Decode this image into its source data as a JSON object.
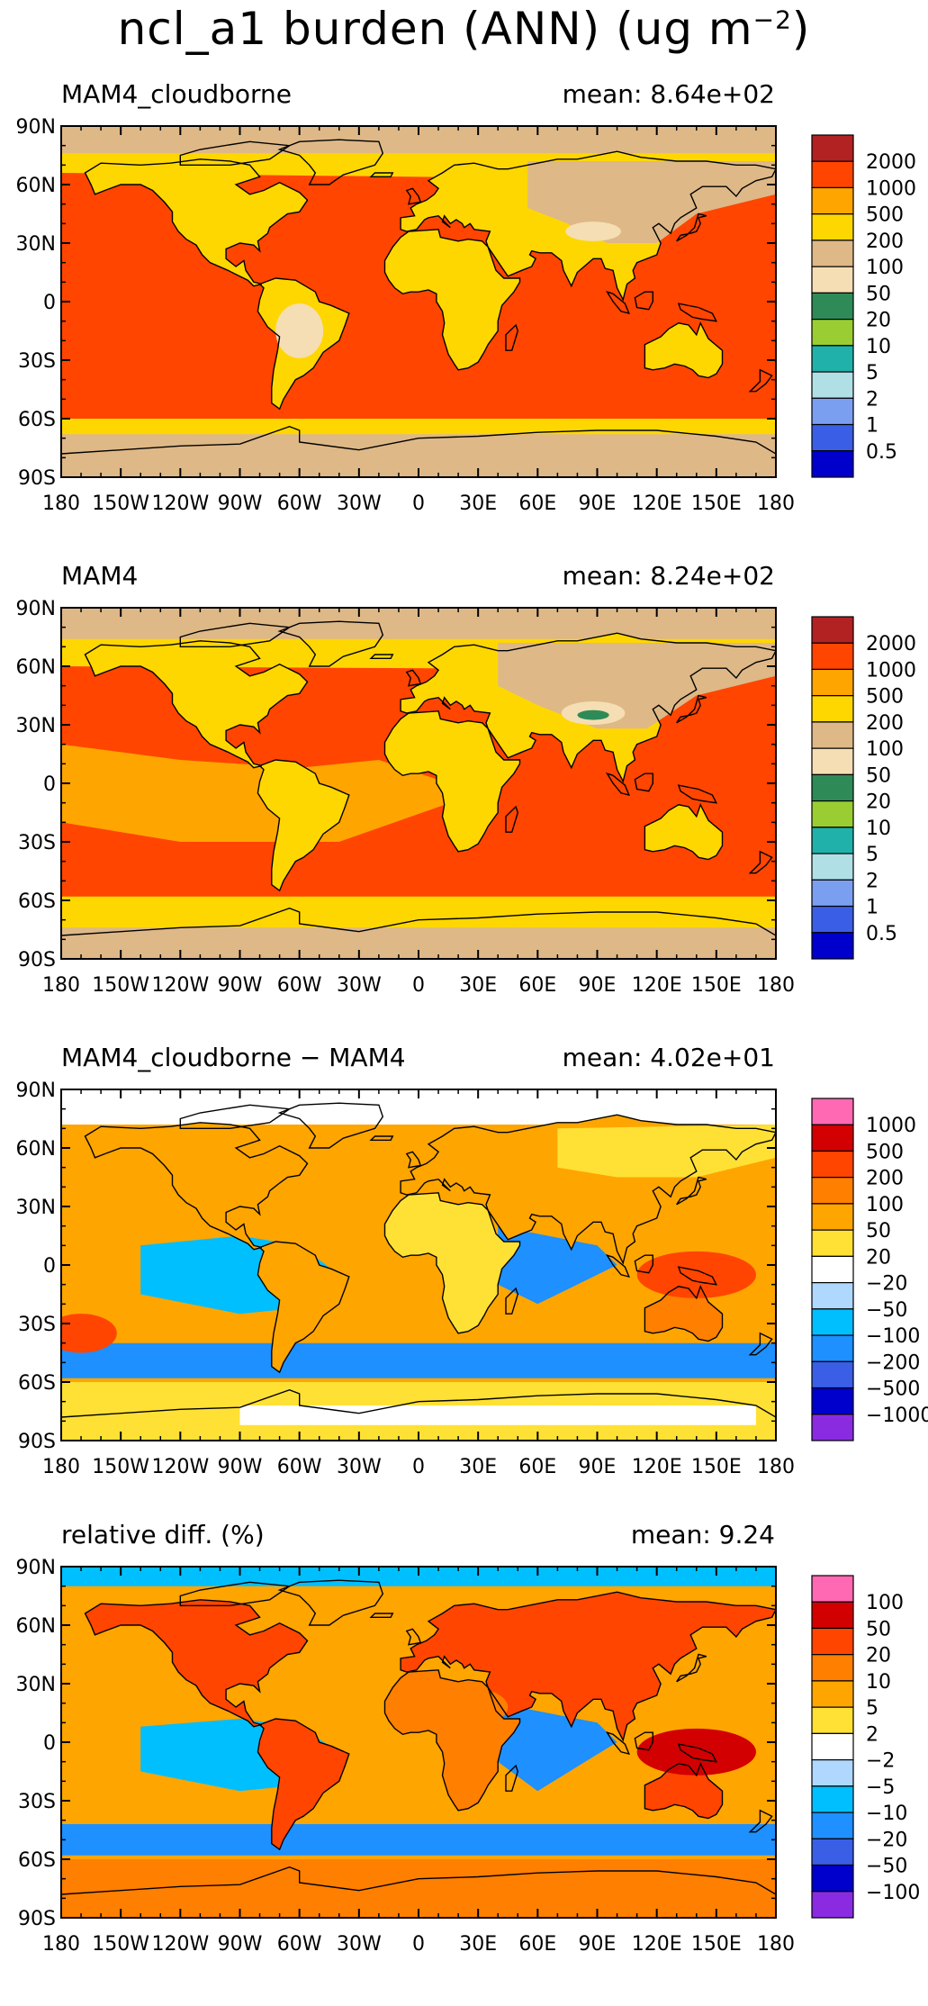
{
  "title": {
    "main": "ncl_a1 burden (ANN) (ug m",
    "exponent": "−2",
    "close": ")"
  },
  "axes": {
    "lat_ticks": [
      "90N",
      "60N",
      "30N",
      "0",
      "30S",
      "60S",
      "90S"
    ],
    "lon_ticks": [
      "180",
      "150W",
      "120W",
      "90W",
      "60W",
      "30W",
      "0",
      "30E",
      "60E",
      "90E",
      "120E",
      "150E",
      "180"
    ]
  },
  "chart_data": [
    {
      "type": "heatmap",
      "label": "MAM4_cloudborne",
      "mean_text": "mean: 8.64e+02",
      "colorbar": {
        "colors": [
          "#0000cd",
          "#3a5fe6",
          "#7b9ff0",
          "#b0e0e6",
          "#20b2aa",
          "#9acd32",
          "#2e8b57",
          "#f5deb3",
          "#deb887",
          "#ffd700",
          "#ffa500",
          "#ff4500",
          "#b22222"
        ],
        "labels": [
          "0.5",
          "1",
          "2",
          "5",
          "10",
          "20",
          "50",
          "100",
          "200",
          "500",
          "1000",
          "2000"
        ]
      },
      "regions": [
        {
          "class": 9,
          "lat_band": [
            60,
            90
          ]
        },
        {
          "class": 11,
          "lat_band": [
            -60,
            60
          ]
        },
        {
          "class": 9,
          "lat_band": [
            -90,
            -60
          ]
        }
      ]
    },
    {
      "type": "heatmap",
      "label": "MAM4",
      "mean_text": "mean: 8.24e+02",
      "colorbar": {
        "colors": [
          "#0000cd",
          "#3a5fe6",
          "#7b9ff0",
          "#b0e0e6",
          "#20b2aa",
          "#9acd32",
          "#2e8b57",
          "#f5deb3",
          "#deb887",
          "#ffd700",
          "#ffa500",
          "#ff4500",
          "#b22222"
        ],
        "labels": [
          "0.5",
          "1",
          "2",
          "5",
          "10",
          "20",
          "50",
          "100",
          "200",
          "500",
          "1000",
          "2000"
        ]
      }
    },
    {
      "type": "heatmap",
      "label": "MAM4_cloudborne − MAM4",
      "mean_text": "mean: 4.02e+01",
      "colorbar": {
        "colors": [
          "#8a2be2",
          "#0000cd",
          "#3a5fe6",
          "#1e90ff",
          "#00bfff",
          "#b0d8ff",
          "#ffffff",
          "#ffe135",
          "#ffa500",
          "#ff7f00",
          "#ff4500",
          "#d20000",
          "#ff69b4"
        ],
        "labels": [
          "−1000",
          "−500",
          "−200",
          "−100",
          "−50",
          "−20",
          "20",
          "50",
          "100",
          "200",
          "500",
          "1000"
        ]
      }
    },
    {
      "type": "heatmap",
      "label": "relative diff. (%)",
      "mean_text": "mean:  9.24",
      "colorbar": {
        "colors": [
          "#8a2be2",
          "#0000cd",
          "#3a5fe6",
          "#1e90ff",
          "#00bfff",
          "#b0d8ff",
          "#ffffff",
          "#ffe135",
          "#ffa500",
          "#ff7f00",
          "#ff4500",
          "#d20000",
          "#ff69b4"
        ],
        "labels": [
          "−100",
          "−50",
          "−20",
          "−10",
          "−5",
          "−2",
          "2",
          "5",
          "10",
          "20",
          "50",
          "100"
        ]
      }
    }
  ]
}
